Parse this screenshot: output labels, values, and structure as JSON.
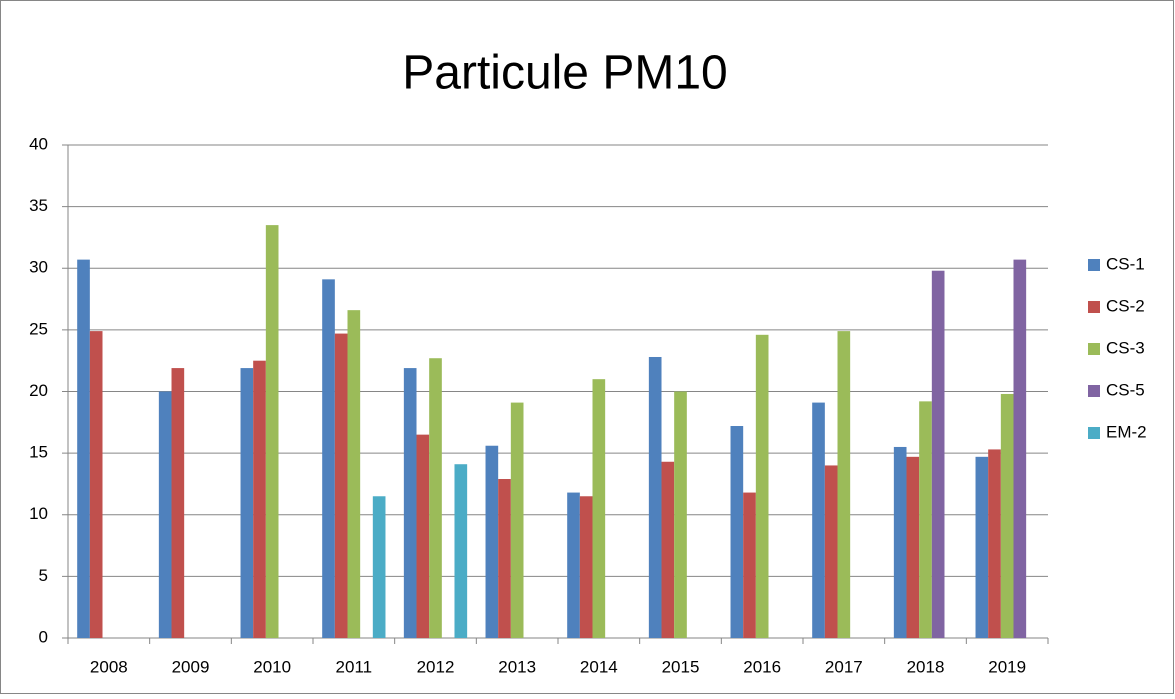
{
  "chart_data": {
    "type": "bar",
    "title": "Particule PM10",
    "categories": [
      "2008",
      "2009",
      "2010",
      "2011",
      "2012",
      "2013",
      "2014",
      "2015",
      "2016",
      "2017",
      "2018",
      "2019"
    ],
    "series": [
      {
        "name": "CS-1",
        "color": "#4f81bd",
        "values": [
          30.7,
          20.0,
          21.9,
          29.1,
          21.9,
          15.6,
          11.8,
          22.8,
          17.2,
          19.1,
          15.5,
          14.7
        ]
      },
      {
        "name": "CS-2",
        "color": "#c0504d",
        "values": [
          24.9,
          21.9,
          22.5,
          24.7,
          16.5,
          12.9,
          11.5,
          14.3,
          11.8,
          14.0,
          14.7,
          15.3
        ]
      },
      {
        "name": "CS-3",
        "color": "#9bbb59",
        "values": [
          null,
          null,
          33.5,
          26.6,
          22.7,
          19.1,
          21.0,
          20.0,
          24.6,
          24.9,
          19.2,
          19.8
        ]
      },
      {
        "name": "CS-5",
        "color": "#8064a2",
        "values": [
          null,
          null,
          null,
          null,
          null,
          null,
          null,
          null,
          null,
          null,
          29.8,
          30.7
        ]
      },
      {
        "name": "EM-2",
        "color": "#4bacc6",
        "values": [
          null,
          null,
          null,
          11.5,
          14.1,
          null,
          null,
          null,
          null,
          null,
          null,
          null
        ]
      }
    ],
    "ylim": [
      0,
      40
    ],
    "yticks": [
      0,
      5,
      10,
      15,
      20,
      25,
      30,
      35,
      40
    ],
    "grid": true,
    "legend": "right"
  }
}
